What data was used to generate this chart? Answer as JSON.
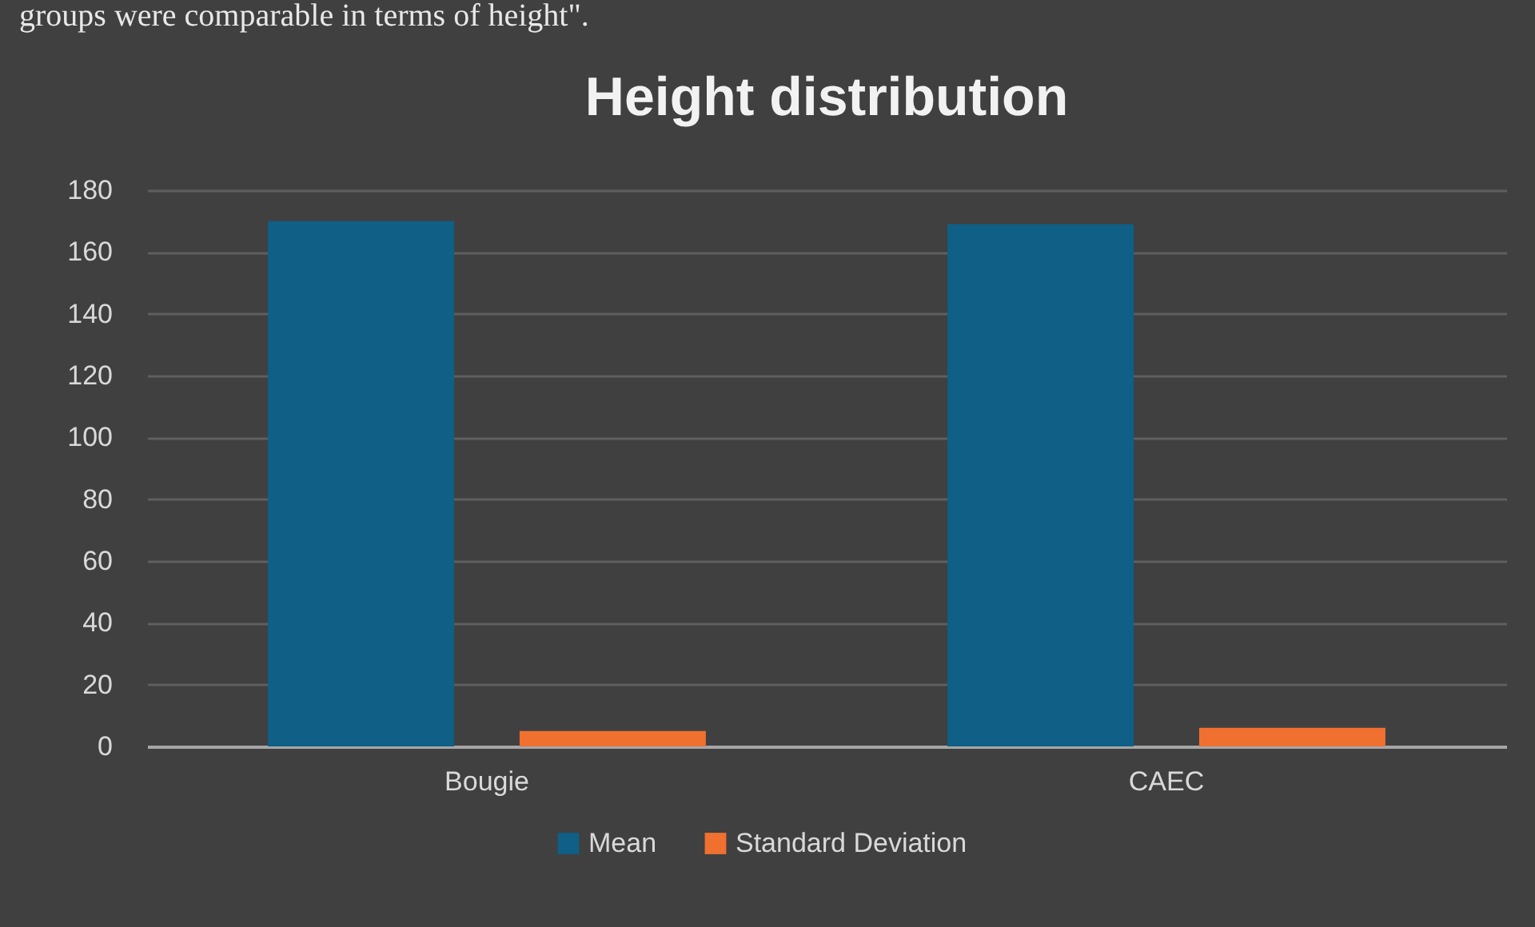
{
  "chart_data": {
    "type": "bar",
    "title": "Height distribution",
    "annotations": [
      "groups were comparable in terms of height\"."
    ],
    "categories": [
      "Bougie",
      "CAEC"
    ],
    "series": [
      {
        "name": "Mean",
        "color": "#0f5f86",
        "values": [
          170,
          169
        ]
      },
      {
        "name": "Standard Deviation",
        "color": "#f07030",
        "values": [
          5,
          6
        ]
      }
    ],
    "ylim": [
      0,
      180
    ],
    "yticks": [
      0,
      20,
      40,
      60,
      80,
      100,
      120,
      140,
      160,
      180
    ],
    "grid": "y",
    "legend": "bottom"
  }
}
